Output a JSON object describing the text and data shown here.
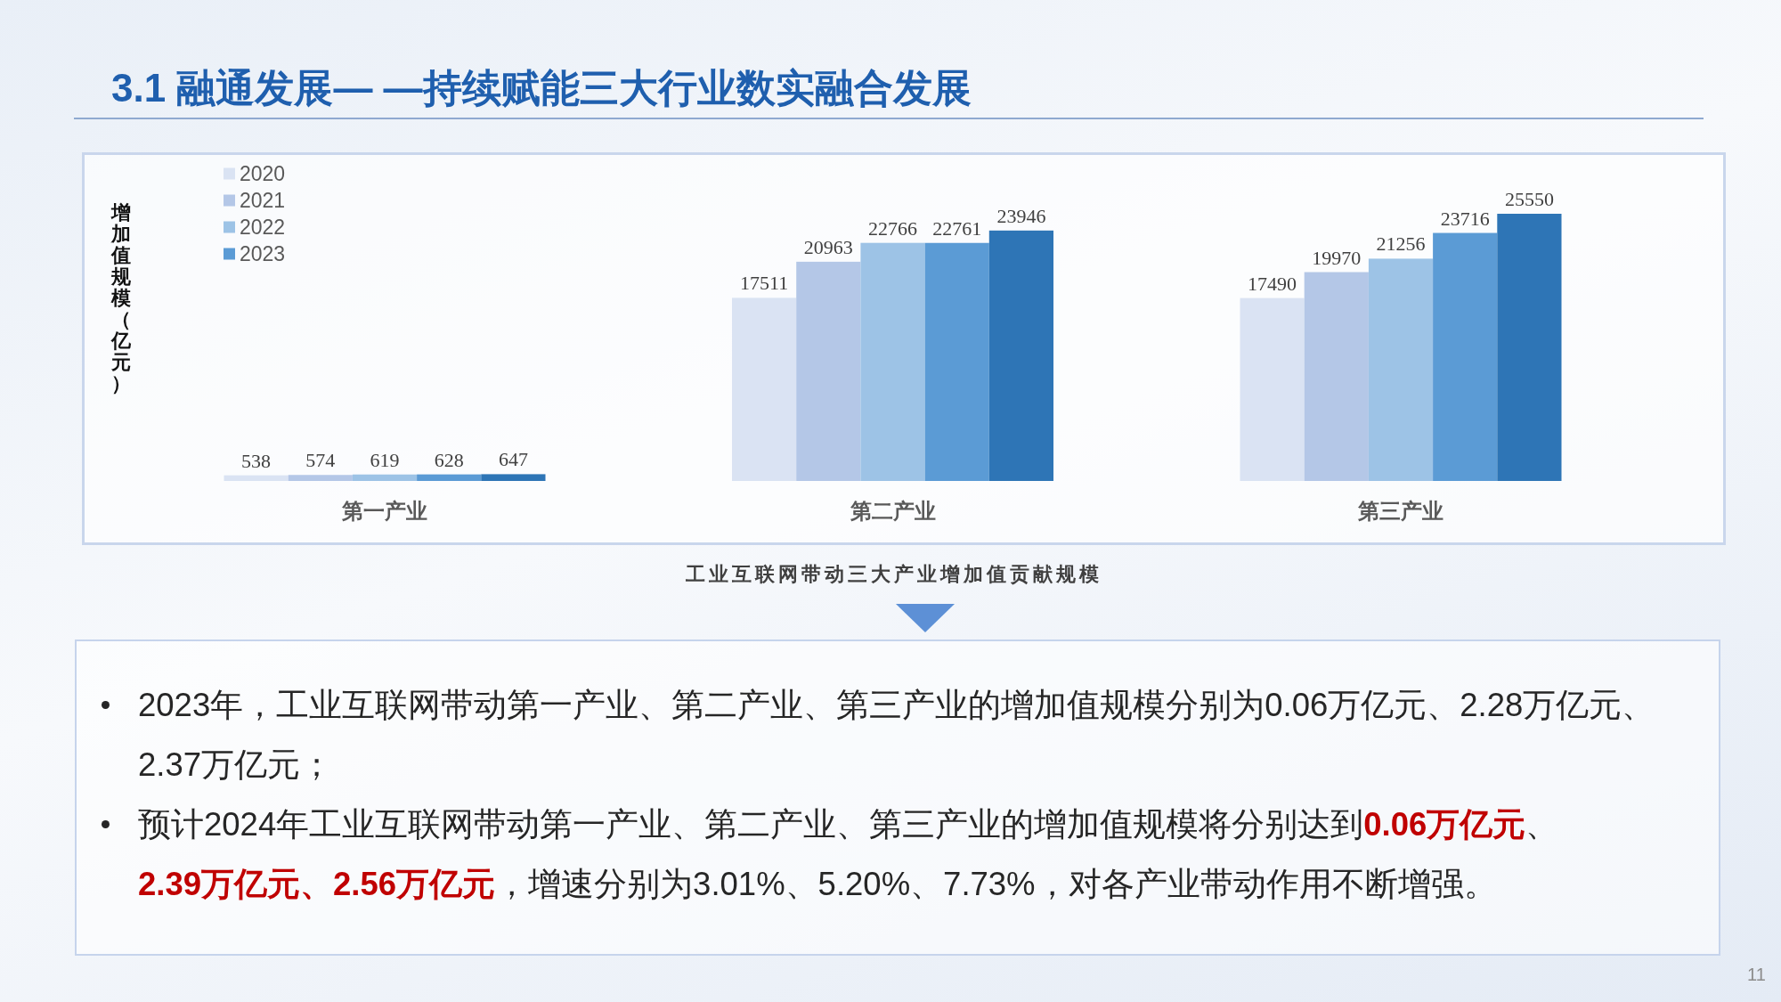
{
  "chart_data": {
    "type": "bar",
    "title": "3.1 融通发展— —持续赋能三大行业数实融合发展",
    "ylabel": "增加值规模（亿元）",
    "categories": [
      "第一产业",
      "第二产业",
      "第三产业"
    ],
    "series": [
      {
        "name": "2020",
        "color": "#dae3f3",
        "values": [
          538,
          17511,
          17490
        ]
      },
      {
        "name": "2021",
        "color": "#b4c7e7",
        "values": [
          574,
          20963,
          19970
        ]
      },
      {
        "name": "2022",
        "color": "#9dc3e6",
        "values": [
          619,
          22766,
          21256
        ]
      },
      {
        "name": "2023",
        "color": "#5b9bd5",
        "values": [
          628,
          22761,
          23716
        ]
      },
      {
        "color": "#2e75b6",
        "values": [
          647,
          23946,
          25550
        ]
      }
    ],
    "data_labels": true,
    "legend": "top left",
    "tick_labels": "x",
    "annotations": [
      "工业互联网带动三大产业增加值贡献规模",
      "2023年，工业互联网带动第一产业、第二产业、第三产业的增加值规模分别为0.06万亿元、2.28万亿元、2.37万亿元；",
      "预计2024年工业互联网带动第一产业、第二产业、第三产业的增加值规模将分别达到",
      "0.06万亿元",
      "、 ",
      "2.39万亿元、2.56万亿元",
      "，增速分别为3.01%、5.20%、7.73%，对各产业带动作用不断增强。",
      "11"
    ]
  }
}
